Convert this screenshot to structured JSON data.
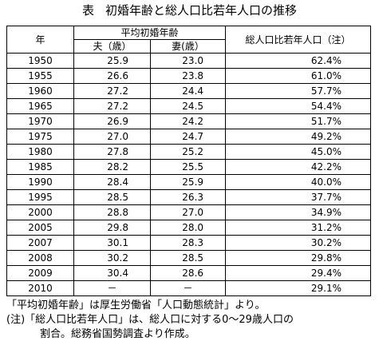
{
  "title": {
    "mark": "表",
    "text": "初婚年齢と総人口比若年人口の推移"
  },
  "table": {
    "header_year": "年",
    "header_group": "平均初婚年齢",
    "header_husband": "夫（歳）",
    "header_wife": "妻(歳）",
    "header_ratio": "総人口比若年人口（注）",
    "rows": [
      {
        "year": "1950",
        "husband": "25.9",
        "wife": "23.0",
        "ratio": "62.4%"
      },
      {
        "year": "1955",
        "husband": "26.6",
        "wife": "23.8",
        "ratio": "61.0%"
      },
      {
        "year": "1960",
        "husband": "27.2",
        "wife": "24.4",
        "ratio": "57.7%"
      },
      {
        "year": "1965",
        "husband": "27.2",
        "wife": "24.5",
        "ratio": "54.4%"
      },
      {
        "year": "1970",
        "husband": "26.9",
        "wife": "24.2",
        "ratio": "51.7%"
      },
      {
        "year": "1975",
        "husband": "27.0",
        "wife": "24.7",
        "ratio": "49.2%"
      },
      {
        "year": "1980",
        "husband": "27.8",
        "wife": "25.2",
        "ratio": "45.0%"
      },
      {
        "year": "1985",
        "husband": "28.2",
        "wife": "25.5",
        "ratio": "42.2%"
      },
      {
        "year": "1990",
        "husband": "28.4",
        "wife": "25.9",
        "ratio": "40.0%"
      },
      {
        "year": "1995",
        "husband": "28.5",
        "wife": "26.3",
        "ratio": "37.7%"
      },
      {
        "year": "2000",
        "husband": "28.8",
        "wife": "27.0",
        "ratio": "34.9%"
      },
      {
        "year": "2005",
        "husband": "29.8",
        "wife": "28.0",
        "ratio": "31.2%"
      },
      {
        "year": "2007",
        "husband": "30.1",
        "wife": "28.3",
        "ratio": "30.2%"
      },
      {
        "year": "2008",
        "husband": "30.2",
        "wife": "28.5",
        "ratio": "29.8%"
      },
      {
        "year": "2009",
        "husband": "30.4",
        "wife": "28.6",
        "ratio": "29.4%"
      },
      {
        "year": "2010",
        "husband": "－",
        "wife": "－",
        "ratio": "29.1%"
      }
    ]
  },
  "notes": {
    "line1": "「平均初婚年齢」は厚生労働省「人口動態統計」より。",
    "line2": "(注)「総人口比若年人口」は、総人口に対する0～29歳人口の",
    "line3": "割合。総務省国勢調査より作成。"
  }
}
